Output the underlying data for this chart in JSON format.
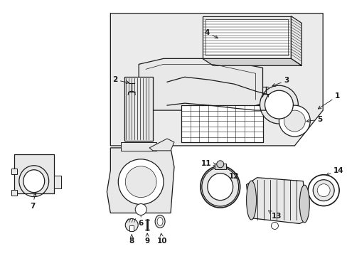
{
  "background_color": "#ffffff",
  "fig_width": 4.89,
  "fig_height": 3.6,
  "dpi": 100,
  "line_color": "#1a1a1a",
  "fill_light": "#e8e8e8",
  "fill_mid": "#d0d0d0",
  "fill_white": "#ffffff",
  "label_fontsize": 7.5,
  "label_fontweight": "bold",
  "lw_main": 0.9,
  "lw_thin": 0.5,
  "lw_thick": 1.2
}
